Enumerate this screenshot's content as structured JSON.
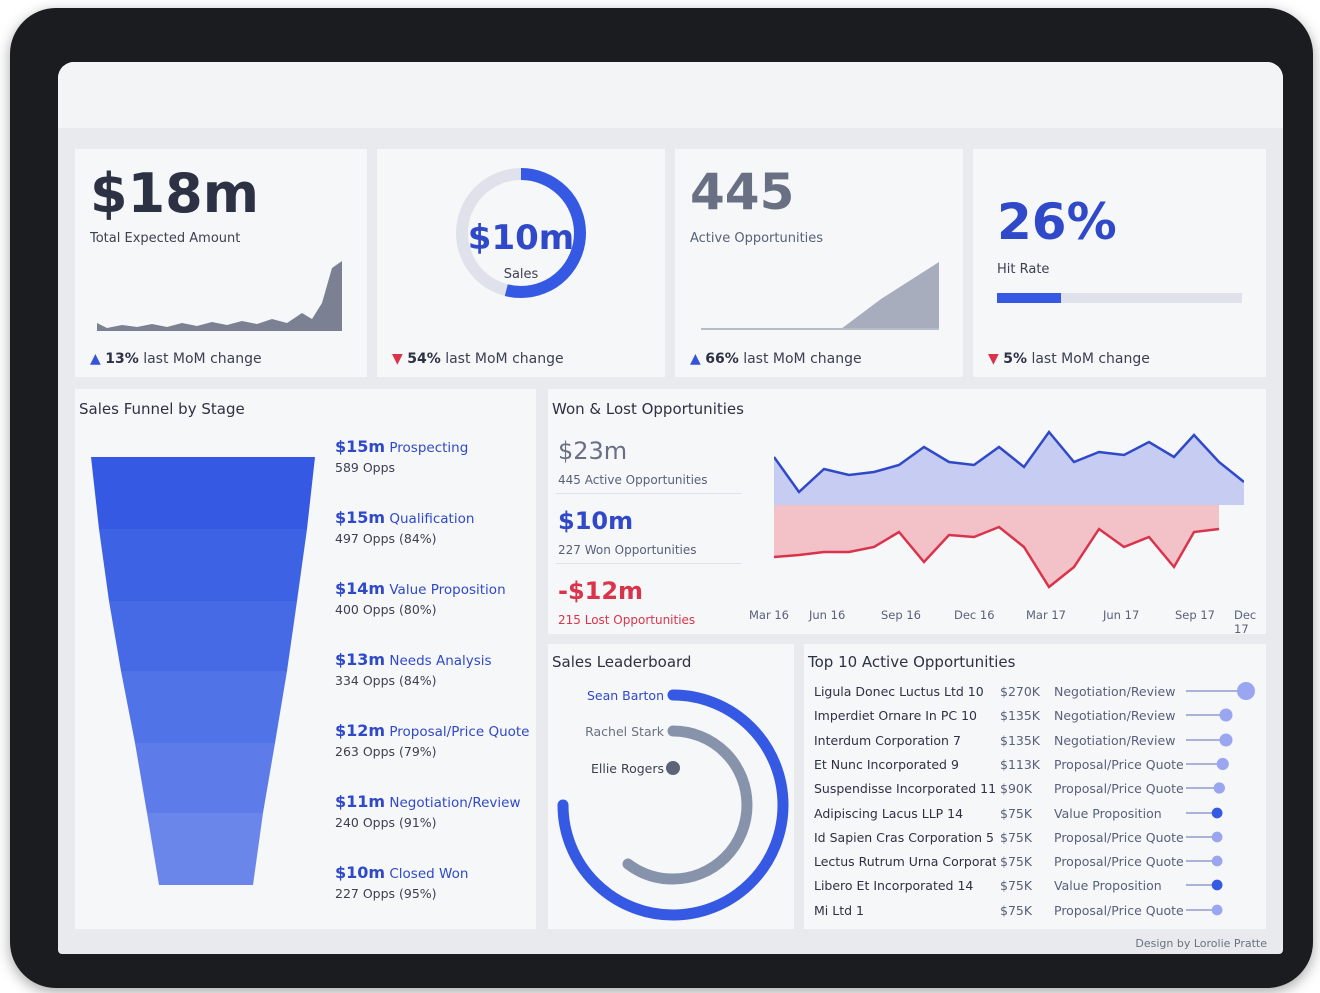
{
  "kpis": {
    "expected": {
      "value": "$18m",
      "label": "Total Expected Amount",
      "change_value": "13%",
      "change_text": " last MoM change",
      "direction": "up"
    },
    "sales": {
      "value": "$10m",
      "label": "Sales",
      "change_value": "54%",
      "change_text": " last MoM change",
      "direction": "down",
      "progress": 0.54
    },
    "opportunities": {
      "value": "445",
      "label": "Active Opportunities",
      "change_value": "66%",
      "change_text": " last MoM change",
      "direction": "up"
    },
    "hit_rate": {
      "value": "26%",
      "label": "Hit Rate",
      "change_value": "5%",
      "change_text": " last MoM change",
      "direction": "down",
      "progress": 0.26
    }
  },
  "funnel": {
    "title": "Sales Funnel by Stage",
    "stages": [
      {
        "amount": "$15m",
        "name": " Prospecting",
        "opps": "589 Opps"
      },
      {
        "amount": "$15m",
        "name": " Qualification",
        "opps": "497 Opps (84%)"
      },
      {
        "amount": "$14m",
        "name": " Value Proposition",
        "opps": "400 Opps (80%)"
      },
      {
        "amount": "$13m",
        "name": " Needs Analysis",
        "opps": "334 Opps (84%)"
      },
      {
        "amount": "$12m",
        "name": " Proposal/Price Quote",
        "opps": "263 Opps (79%)"
      },
      {
        "amount": "$11m",
        "name": " Negotiation/Review",
        "opps": "240 Opps (91%)"
      },
      {
        "amount": "$10m",
        "name": " Closed Won",
        "opps": "227 Opps (95%)"
      }
    ]
  },
  "won_lost": {
    "title": "Won & Lost Opportunities",
    "total": {
      "value": "$23m",
      "sub": "445 Active Opportunities"
    },
    "won": {
      "value": "$10m",
      "sub": "227 Won Opportunities"
    },
    "lost": {
      "value": "-$12m",
      "sub": "215 Lost Opportunities"
    },
    "x_labels": [
      "Mar 16",
      "Jun 16",
      "Sep 16",
      "Dec 16",
      "Mar 17",
      "Jun 17",
      "Sep 17",
      "Dec 17"
    ]
  },
  "leaderboard": {
    "title": "Sales Leaderboard",
    "people": [
      {
        "name": "Sean Barton",
        "progress": 0.72,
        "color": "#3659e3"
      },
      {
        "name": "Rachel Stark",
        "progress": 0.56,
        "color": "#8793ab"
      },
      {
        "name": "Ellie Rogers",
        "progress": 0.0,
        "color": "#5d6478"
      }
    ]
  },
  "top10": {
    "title": "Top 10 Active Opportunities",
    "rows": [
      {
        "name": "Ligula Donec Luctus Ltd 10",
        "amount": "$270K",
        "stage": "Negotiation/Review"
      },
      {
        "name": "Imperdiet Ornare In PC 10",
        "amount": "$135K",
        "stage": "Negotiation/Review"
      },
      {
        "name": "Interdum Corporation 7",
        "amount": "$135K",
        "stage": "Negotiation/Review"
      },
      {
        "name": "Et Nunc Incorporated 9",
        "amount": "$113K",
        "stage": "Proposal/Price Quote"
      },
      {
        "name": "Suspendisse Incorporated 11",
        "amount": "$90K",
        "stage": "Proposal/Price Quote"
      },
      {
        "name": "Adipiscing Lacus LLP 14",
        "amount": "$75K",
        "stage": "Value Proposition"
      },
      {
        "name": "Id Sapien Cras Corporation 5",
        "amount": "$75K",
        "stage": "Proposal/Price Quote"
      },
      {
        "name": "Lectus Rutrum Urna Corporatio..",
        "amount": "$75K",
        "stage": "Proposal/Price Quote"
      },
      {
        "name": "Libero Et Incorporated 14",
        "amount": "$75K",
        "stage": "Value Proposition"
      },
      {
        "name": "Mi Ltd 1",
        "amount": "$75K",
        "stage": "Proposal/Price Quote"
      }
    ]
  },
  "footer": "Design by Lorolie Pratte",
  "colors": {
    "accent": "#3659e3",
    "negative": "#d9344b",
    "text": "#2d3144"
  }
}
